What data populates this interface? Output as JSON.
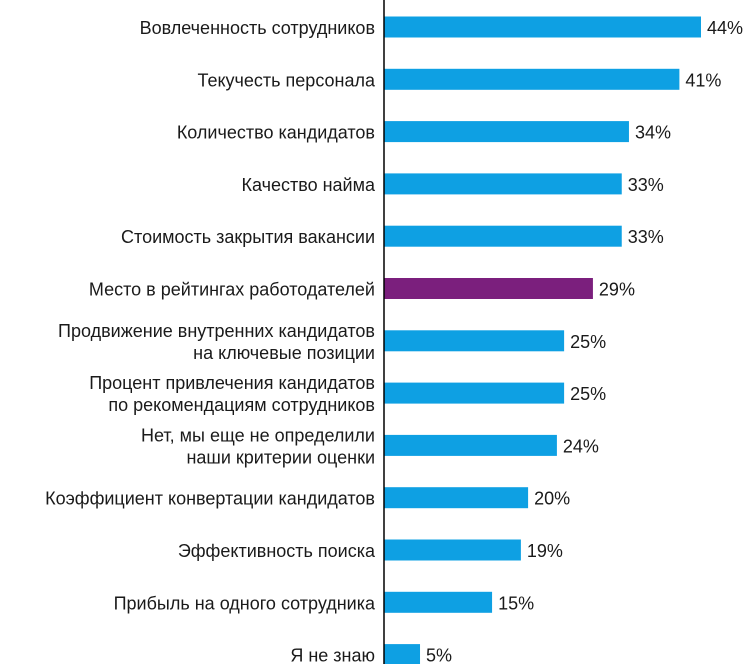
{
  "chart_data": {
    "type": "bar",
    "orientation": "horizontal",
    "title": "",
    "xlabel": "",
    "ylabel": "",
    "categories": [
      [
        "Вовлеченность сотрудников"
      ],
      [
        "Текучесть персонала"
      ],
      [
        "Количество кандидатов"
      ],
      [
        "Качество найма"
      ],
      [
        "Стоимость закрытия вакансии"
      ],
      [
        "Место в рейтингах работодателей"
      ],
      [
        "Продвижение внутренних кандидатов",
        "на ключевые позиции"
      ],
      [
        "Процент привлечения кандидатов",
        "по рекомендациям сотрудников"
      ],
      [
        "Нет, мы еще не определили",
        "наши критерии оценки"
      ],
      [
        "Коэффициент конвертации кандидатов"
      ],
      [
        "Эффективность поиска"
      ],
      [
        "Прибыль на одного сотрудника"
      ],
      [
        "Я не знаю"
      ]
    ],
    "values": [
      44,
      41,
      34,
      33,
      33,
      29,
      25,
      25,
      24,
      20,
      19,
      15,
      5
    ],
    "value_labels": [
      "44%",
      "41%",
      "34%",
      "33%",
      "33%",
      "29%",
      "25%",
      "25%",
      "24%",
      "20%",
      "19%",
      "15%",
      "5%"
    ],
    "highlight_index": 5,
    "xlim": [
      0,
      44
    ],
    "grid": false,
    "colors": {
      "bar": "#0ea0e3",
      "highlight": "#7b1f7d",
      "axis": "#000000",
      "text": "#1a1a1a"
    }
  }
}
